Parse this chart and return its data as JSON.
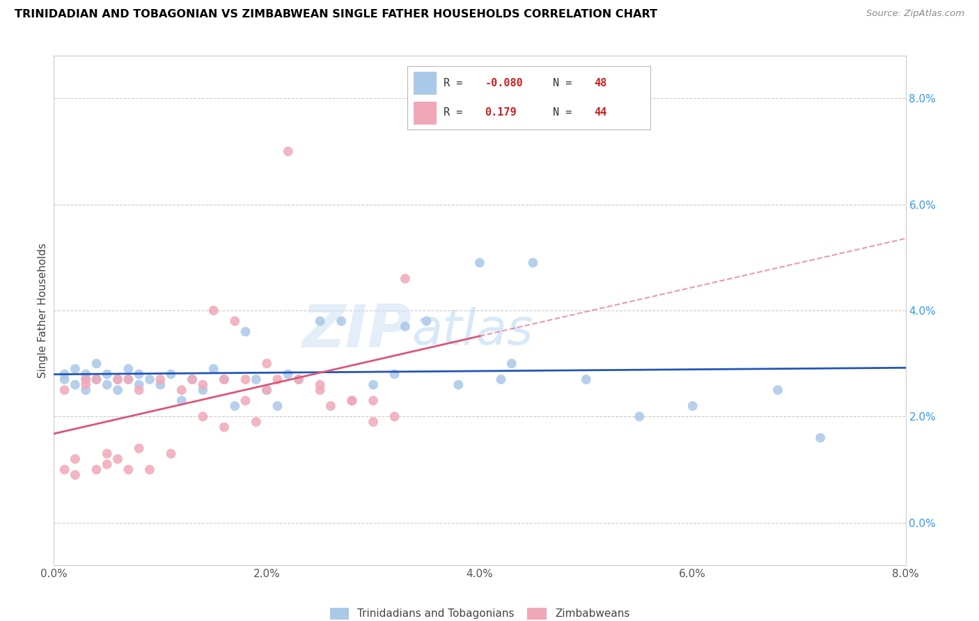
{
  "title": "TRINIDADIAN AND TOBAGONIAN VS ZIMBABWEAN SINGLE FATHER HOUSEHOLDS CORRELATION CHART",
  "source": "Source: ZipAtlas.com",
  "ylabel": "Single Father Households",
  "legend1_label": "Trinidadians and Tobagonians",
  "legend2_label": "Zimbabweans",
  "R_blue": -0.08,
  "N_blue": 48,
  "R_pink": 0.179,
  "N_pink": 44,
  "blue_color": "#aac8e8",
  "pink_color": "#f0a8b8",
  "blue_line_color": "#2255bb",
  "pink_line_color": "#dd5577",
  "grid_color": "#cccccc",
  "watermark_color": "#cce0f0",
  "xlim": [
    0.0,
    0.08
  ],
  "ylim": [
    -0.008,
    0.088
  ],
  "xtick_vals": [
    0.0,
    0.02,
    0.04,
    0.06,
    0.08
  ],
  "ytick_vals": [
    0.0,
    0.02,
    0.04,
    0.06,
    0.08
  ],
  "blue_x": [
    0.001,
    0.001,
    0.002,
    0.002,
    0.003,
    0.003,
    0.003,
    0.004,
    0.004,
    0.005,
    0.005,
    0.006,
    0.006,
    0.007,
    0.007,
    0.008,
    0.008,
    0.009,
    0.01,
    0.011,
    0.012,
    0.013,
    0.014,
    0.015,
    0.016,
    0.017,
    0.018,
    0.019,
    0.02,
    0.021,
    0.022,
    0.023,
    0.025,
    0.027,
    0.03,
    0.032,
    0.033,
    0.035,
    0.038,
    0.04,
    0.042,
    0.043,
    0.045,
    0.05,
    0.055,
    0.06,
    0.068,
    0.072
  ],
  "blue_y": [
    0.027,
    0.028,
    0.026,
    0.029,
    0.027,
    0.028,
    0.025,
    0.027,
    0.03,
    0.026,
    0.028,
    0.027,
    0.025,
    0.029,
    0.027,
    0.028,
    0.026,
    0.027,
    0.026,
    0.028,
    0.023,
    0.027,
    0.025,
    0.029,
    0.027,
    0.022,
    0.036,
    0.027,
    0.025,
    0.022,
    0.028,
    0.027,
    0.038,
    0.038,
    0.026,
    0.028,
    0.037,
    0.038,
    0.026,
    0.049,
    0.027,
    0.03,
    0.049,
    0.027,
    0.02,
    0.022,
    0.025,
    0.016
  ],
  "pink_x": [
    0.001,
    0.001,
    0.002,
    0.002,
    0.003,
    0.003,
    0.004,
    0.004,
    0.005,
    0.005,
    0.006,
    0.006,
    0.007,
    0.007,
    0.008,
    0.008,
    0.009,
    0.01,
    0.011,
    0.012,
    0.013,
    0.014,
    0.015,
    0.016,
    0.017,
    0.018,
    0.019,
    0.02,
    0.021,
    0.022,
    0.023,
    0.025,
    0.026,
    0.028,
    0.03,
    0.032,
    0.033,
    0.014,
    0.016,
    0.018,
    0.02,
    0.025,
    0.028,
    0.03
  ],
  "pink_y": [
    0.01,
    0.025,
    0.009,
    0.012,
    0.026,
    0.027,
    0.01,
    0.027,
    0.011,
    0.013,
    0.012,
    0.027,
    0.01,
    0.027,
    0.014,
    0.025,
    0.01,
    0.027,
    0.013,
    0.025,
    0.027,
    0.02,
    0.04,
    0.027,
    0.038,
    0.027,
    0.019,
    0.03,
    0.027,
    0.07,
    0.027,
    0.025,
    0.022,
    0.023,
    0.019,
    0.02,
    0.046,
    0.026,
    0.018,
    0.023,
    0.025,
    0.026,
    0.023,
    0.023
  ]
}
